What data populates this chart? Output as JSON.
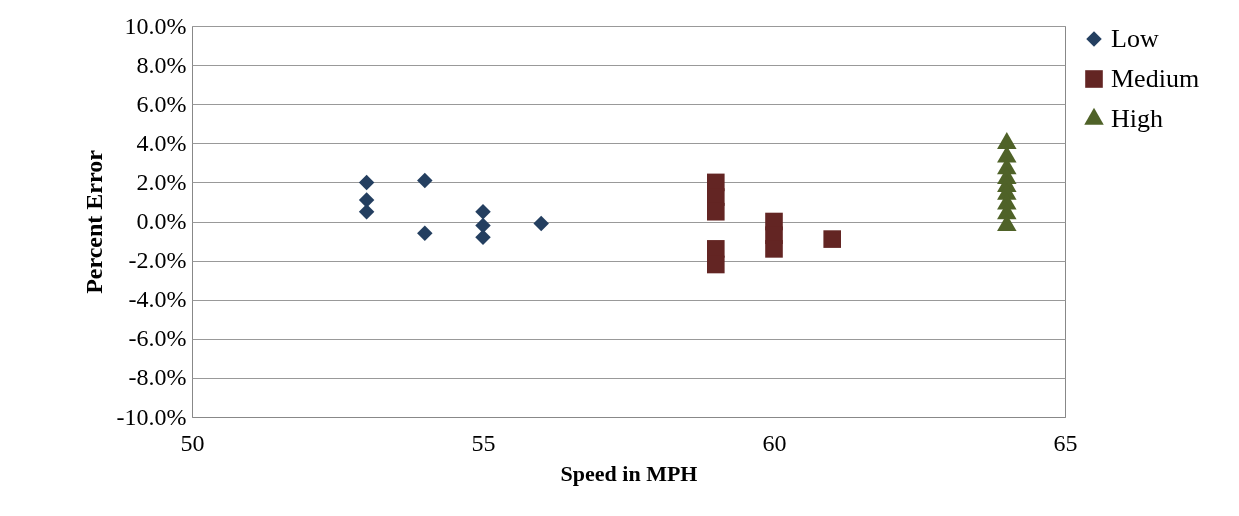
{
  "chart_data": {
    "type": "scatter",
    "xlabel": "Speed in MPH",
    "ylabel": "Percent Error",
    "xlim": [
      50,
      65
    ],
    "xticks": [
      50,
      55,
      60,
      65
    ],
    "ylim": [
      -10,
      10
    ],
    "yticks": [
      {
        "value": -10,
        "label": "-10.0%"
      },
      {
        "value": -8,
        "label": "-8.0%"
      },
      {
        "value": -6,
        "label": "-6.0%"
      },
      {
        "value": -4,
        "label": "-4.0%"
      },
      {
        "value": -2,
        "label": "-2.0%"
      },
      {
        "value": 0,
        "label": "0.0%"
      },
      {
        "value": 2,
        "label": "2.0%"
      },
      {
        "value": 4,
        "label": "4.0%"
      },
      {
        "value": 6,
        "label": "6.0%"
      },
      {
        "value": 8,
        "label": "8.0%"
      },
      {
        "value": 10,
        "label": "10.0%"
      }
    ],
    "grid": "y",
    "legend": "right",
    "series": [
      {
        "name": "Low",
        "color": "#243f60",
        "marker": "diamond",
        "x": [
          53,
          53,
          53,
          54,
          54,
          55,
          55,
          55,
          56
        ],
        "values": [
          2.0,
          1.1,
          0.5,
          2.1,
          -0.6,
          0.5,
          -0.2,
          -0.8,
          -0.1
        ]
      },
      {
        "name": "Medium",
        "color": "#632523",
        "marker": "square",
        "x": [
          59,
          59,
          59,
          59,
          59,
          60,
          60,
          60,
          61
        ],
        "values": [
          2.0,
          1.25,
          0.5,
          -1.4,
          -2.2,
          0.0,
          -0.7,
          -1.4,
          -0.9
        ]
      },
      {
        "name": "High",
        "color": "#4f6228",
        "marker": "triangle",
        "x": [
          64,
          64,
          64,
          64,
          64,
          64,
          64,
          64,
          64
        ],
        "values": [
          4.0,
          3.3,
          2.7,
          2.2,
          1.8,
          1.4,
          0.9,
          0.4,
          -0.2
        ]
      }
    ]
  }
}
